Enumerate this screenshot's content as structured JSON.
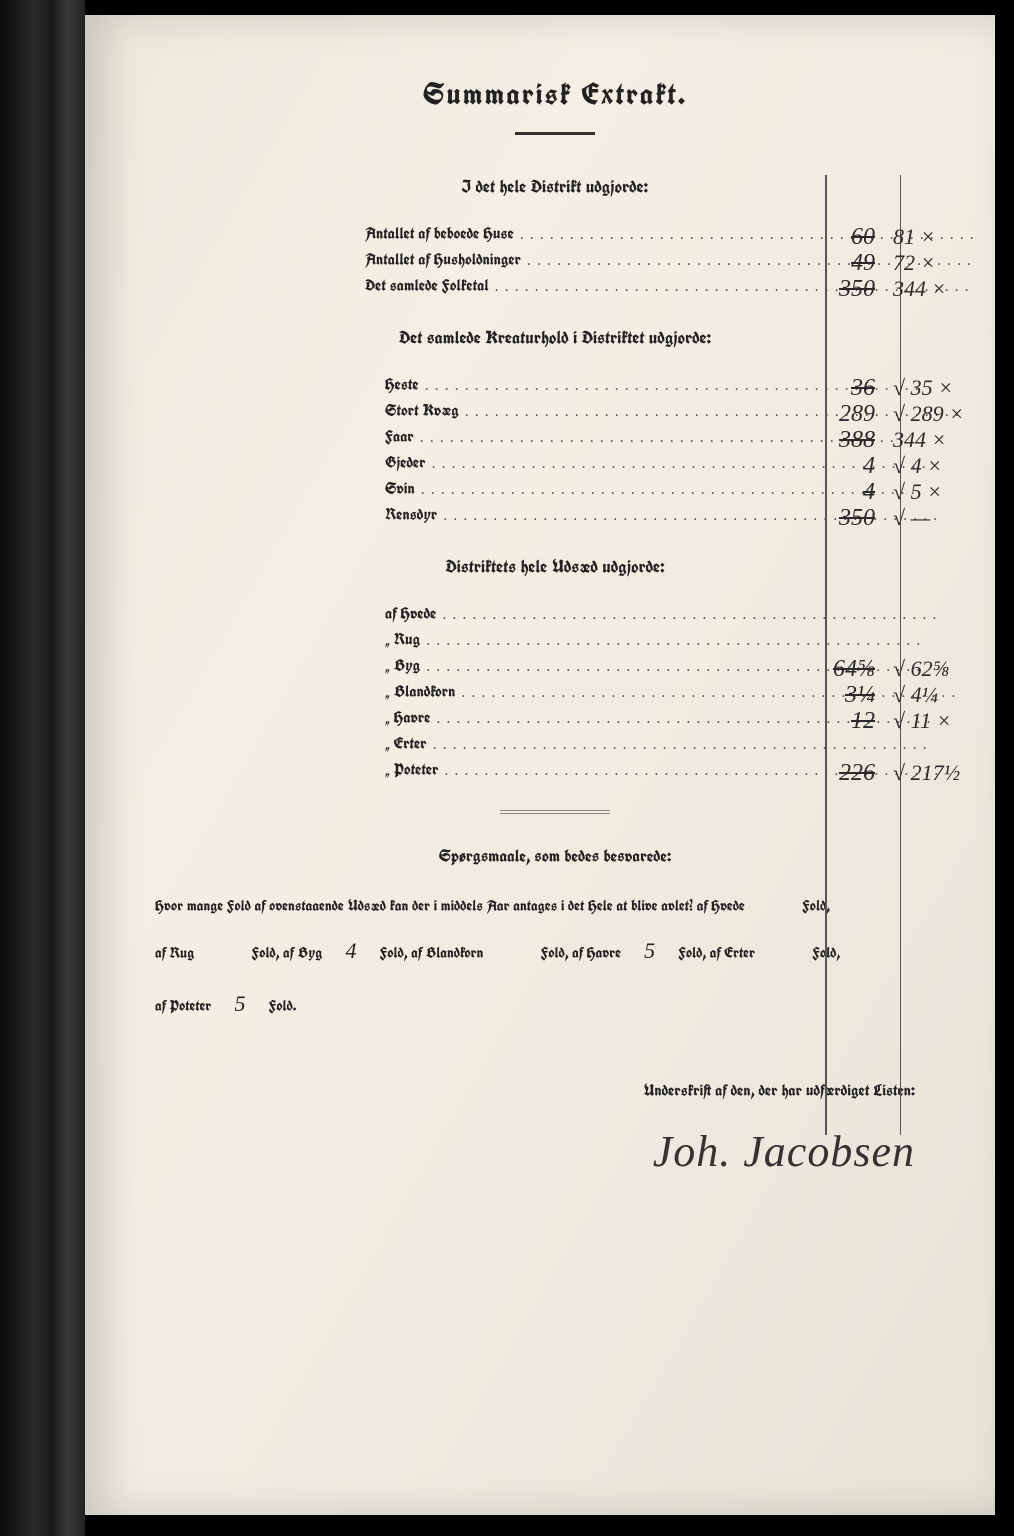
{
  "title": "Summarisk Extrakt.",
  "sections": {
    "s1": {
      "head": "I det hele Distrikt udgjorde:",
      "rows": [
        {
          "label": "Antallet af beboede Huse",
          "c1": "60",
          "c2": "81 ×",
          "strike": true
        },
        {
          "label": "Antallet af Husholdninger",
          "c1": "49",
          "c2": "72 ×",
          "strike": true
        },
        {
          "label": "Det samlede Folketal",
          "c1": "350",
          "c2": "344 ×",
          "strike": true
        }
      ]
    },
    "s2": {
      "head": "Det samlede Kreaturhold i Distriktet udgjorde:",
      "rows": [
        {
          "label": "Heste",
          "c1": "36",
          "c2": "√ 35 ×",
          "strike": true
        },
        {
          "label": "Stort Kvæg",
          "c1": "289",
          "c2": "√ 289 ×",
          "strike": false
        },
        {
          "label": "Faar",
          "c1": "388",
          "c2": "344 ×",
          "strike": true
        },
        {
          "label": "Gjeder",
          "c1": "4",
          "c2": "√ 4 ×",
          "strike": false
        },
        {
          "label": "Svin",
          "c1": "4",
          "c2": "√ 5 ×",
          "strike": true
        },
        {
          "label": "Rensdyr",
          "c1": "350",
          "c2": "√ —",
          "strike": true
        }
      ]
    },
    "s3": {
      "head": "Distriktets hele Udsæd udgjorde:",
      "rows": [
        {
          "label": "af Hvede",
          "c1": "",
          "c2": "",
          "strike": false
        },
        {
          "label": "„ Rug",
          "c1": "",
          "c2": "",
          "strike": false
        },
        {
          "label": "„ Byg",
          "c1": "64⅝",
          "c2": "√ 62⅝",
          "strike": true
        },
        {
          "label": "„ Blandkorn",
          "c1": "3¼",
          "c2": "√ 4¼",
          "strike": true
        },
        {
          "label": "„ Havre",
          "c1": "12",
          "c2": "√ 11 ×",
          "strike": true
        },
        {
          "label": "„ Erter",
          "c1": "",
          "c2": "",
          "strike": false
        },
        {
          "label": "„ Poteter",
          "c1": "226",
          "c2": "√ 217½",
          "strike": true
        }
      ]
    }
  },
  "questions_head": "Spørgsmaale, som bedes besvarede:",
  "q": {
    "lead": "Hvor mange Fold af ovenstaaende Udsæd kan der i middels Aar antages i det Hele at blive avlet?  af Hvede",
    "hvede": "",
    "rug": "",
    "byg": "4",
    "blandkorn": "",
    "havre": "5",
    "erter": "",
    "poteter": "5"
  },
  "sig_label": "Underskrift af den, der har udfærdiget Listen:",
  "signature": "Joh. Jacobsen",
  "colors": {
    "paper": "#efebe0",
    "ink": "#222",
    "rule": "#555"
  }
}
